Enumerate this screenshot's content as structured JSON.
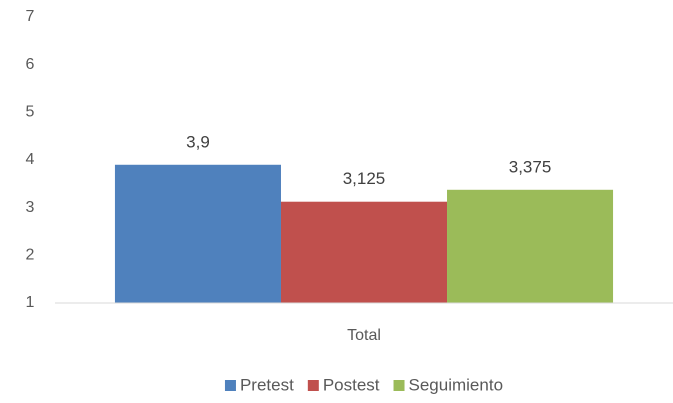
{
  "chart_data": {
    "type": "bar",
    "categories": [
      "Total"
    ],
    "series": [
      {
        "name": "Pretest",
        "color": "#4f81bd",
        "values": [
          3.9
        ],
        "value_labels": [
          "3,9"
        ]
      },
      {
        "name": "Postest",
        "color": "#c0504d",
        "values": [
          3.125
        ],
        "value_labels": [
          "3,125"
        ]
      },
      {
        "name": "Seguimiento",
        "color": "#9bbb59",
        "values": [
          3.375
        ],
        "value_labels": [
          "3,375"
        ]
      }
    ],
    "ylim": [
      1,
      7
    ],
    "yticks": [
      1,
      2,
      3,
      4,
      5,
      6,
      7
    ],
    "grid": false,
    "legend": "bottom"
  }
}
